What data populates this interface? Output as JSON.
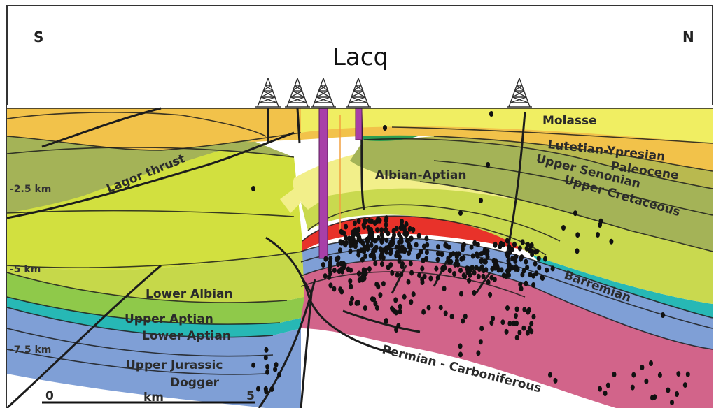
{
  "title": "Lacq",
  "orientation": {
    "left": "S",
    "right": "N"
  },
  "depth_labels": [
    "-2.5 km",
    "-5 km",
    "-7.5 km"
  ],
  "scale_bar": {
    "start": "0",
    "unit": "km",
    "end": "5"
  },
  "formations": [
    "Molasse",
    "Lutetian-Ypresian",
    "Paleocene",
    "Upper Senonian",
    "Upper Cretaceous",
    "Albian-Aptian",
    "Barremian",
    "Lower Albian",
    "Upper Aptian",
    "Lower Aptian",
    "Upper Jurassic",
    "Dogger",
    "Permian - Carboniferous"
  ],
  "structures": [
    "Lagor thrust"
  ],
  "colors": {
    "molasse": "#f0ee62",
    "lutetian": "#f2c24a",
    "paleocene": "#b9b94f",
    "senonian": "#a4b357",
    "cretaceous": "#c9d94f",
    "albian_aptian": "#f2ef8a",
    "albian": "#d2e03f",
    "aptian": "#8fc94a",
    "reservoir": "#e8322a",
    "barremian": "#27b8b5",
    "jurassic": "#7f9fd6",
    "permian": "#d2648a",
    "well": "#a83fa8",
    "seismic_event": "#111111"
  }
}
